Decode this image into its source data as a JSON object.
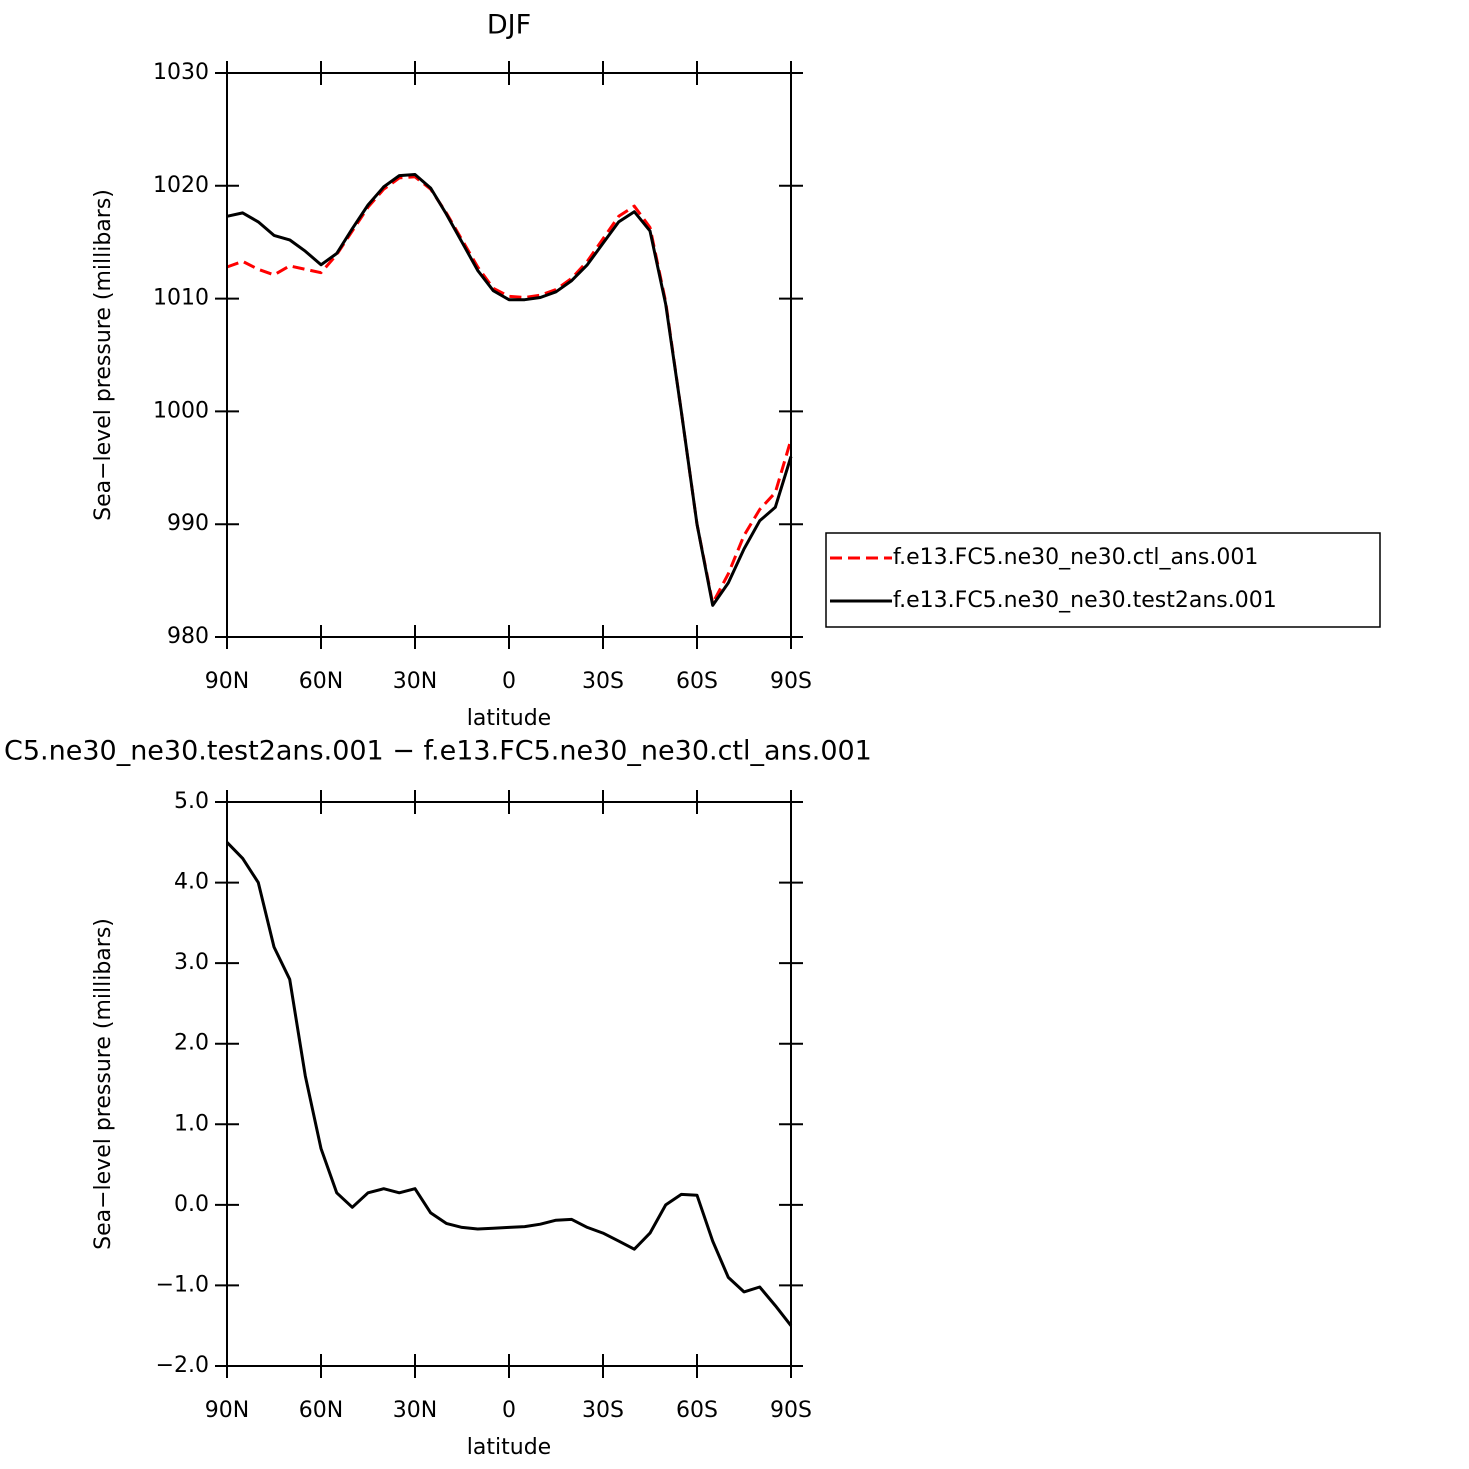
{
  "chart_data": [
    {
      "type": "line",
      "title": "DJF",
      "xlabel": "latitude",
      "ylabel": "Sea−level pressure (millibars)",
      "x": [
        90,
        85,
        80,
        75,
        70,
        65,
        60,
        55,
        50,
        45,
        40,
        35,
        30,
        25,
        20,
        15,
        10,
        5,
        0,
        -5,
        -10,
        -15,
        -20,
        -25,
        -30,
        -35,
        -40,
        -45,
        -50,
        -55,
        -60,
        -65,
        -70,
        -75,
        -80,
        -85,
        -90
      ],
      "series": [
        {
          "name": "f.e13.FC5.ne30_ne30.ctl_ans.001",
          "color": "#ff0000",
          "dash": true,
          "values": [
            1012.8,
            1013.3,
            1012.6,
            1012.1,
            1012.9,
            1012.6,
            1012.3,
            1013.9,
            1016.0,
            1018.1,
            1019.7,
            1020.7,
            1020.8,
            1019.7,
            1017.6,
            1015.2,
            1012.8,
            1010.9,
            1010.2,
            1010.1,
            1010.3,
            1010.8,
            1011.8,
            1013.3,
            1015.3,
            1017.3,
            1018.2,
            1016.3,
            1009.7,
            1000.0,
            990.0,
            983.0,
            985.6,
            989.0,
            991.3,
            992.8,
            997.5
          ]
        },
        {
          "name": "f.e13.FC5.ne30_ne30.test2ans.001",
          "color": "#000000",
          "dash": false,
          "values": [
            1017.3,
            1017.6,
            1016.8,
            1015.6,
            1015.2,
            1014.2,
            1013.0,
            1014.0,
            1016.2,
            1018.3,
            1019.9,
            1020.9,
            1021.0,
            1019.8,
            1017.5,
            1015.0,
            1012.5,
            1010.7,
            1009.9,
            1009.9,
            1010.1,
            1010.6,
            1011.6,
            1013.0,
            1014.9,
            1016.8,
            1017.7,
            1016.0,
            1009.5,
            1000.0,
            990.0,
            982.8,
            984.8,
            987.8,
            990.3,
            991.5,
            996.0
          ]
        }
      ],
      "xlim": [
        90,
        -90
      ],
      "xticks": [
        {
          "value": 90,
          "label": "90N"
        },
        {
          "value": 60,
          "label": "60N"
        },
        {
          "value": 30,
          "label": "30N"
        },
        0,
        {
          "value": -30,
          "label": "30S"
        },
        {
          "value": -60,
          "label": "60S"
        },
        {
          "value": -90,
          "label": "90S"
        }
      ],
      "ylim": [
        980,
        1030
      ],
      "yticks": [
        980,
        990,
        1000,
        1010,
        1020,
        1030
      ]
    },
    {
      "type": "line",
      "title": "C5.ne30_ne30.test2ans.001 − f.e13.FC5.ne30_ne30.ctl_ans.001",
      "xlabel": "latitude",
      "ylabel": "Sea−level pressure (millibars)",
      "x": [
        90,
        85,
        80,
        75,
        70,
        65,
        60,
        55,
        50,
        45,
        40,
        35,
        30,
        25,
        20,
        15,
        10,
        5,
        0,
        -5,
        -10,
        -15,
        -20,
        -25,
        -30,
        -35,
        -40,
        -45,
        -50,
        -55,
        -60,
        -65,
        -70,
        -75,
        -80,
        -85,
        -90
      ],
      "color": "#000000",
      "values": [
        4.5,
        4.3,
        4.0,
        3.2,
        2.8,
        1.6,
        0.7,
        0.15,
        -0.03,
        0.15,
        0.2,
        0.15,
        0.2,
        -0.1,
        -0.23,
        -0.28,
        -0.3,
        -0.29,
        -0.28,
        -0.27,
        -0.24,
        -0.19,
        -0.18,
        -0.28,
        -0.35,
        -0.45,
        -0.55,
        -0.35,
        0.0,
        0.13,
        0.12,
        -0.45,
        -0.9,
        -1.08,
        -1.02,
        -1.25,
        -1.5
      ],
      "xlim": [
        90,
        -90
      ],
      "xticks": [
        {
          "value": 90,
          "label": "90N"
        },
        {
          "value": 60,
          "label": "60N"
        },
        {
          "value": 30,
          "label": "30N"
        },
        0,
        {
          "value": -30,
          "label": "30S"
        },
        {
          "value": -60,
          "label": "60S"
        },
        {
          "value": -90,
          "label": "90S"
        }
      ],
      "ylim": [
        -2,
        5
      ],
      "yticks": [
        {
          "value": -2,
          "label": "−2.0"
        },
        {
          "value": -1,
          "label": "−1.0"
        },
        {
          "value": 0,
          "label": "0.0"
        },
        {
          "value": 1,
          "label": "1.0"
        },
        {
          "value": 2,
          "label": "2.0"
        },
        {
          "value": 3,
          "label": "3.0"
        },
        {
          "value": 4,
          "label": "4.0"
        },
        {
          "value": 5,
          "label": "5.0"
        }
      ]
    }
  ]
}
